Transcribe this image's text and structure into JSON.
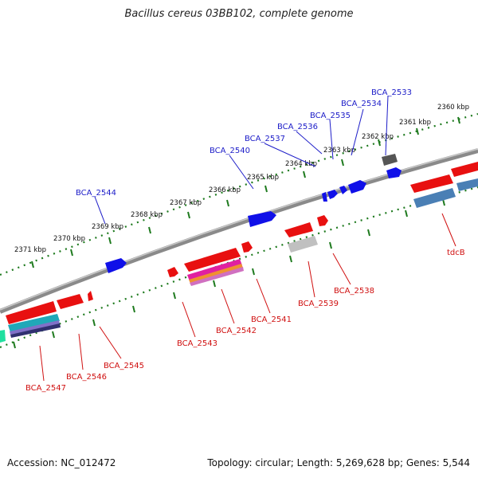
{
  "title": "Bacillus cereus 03BB102, complete genome",
  "footer": {
    "accession": "Accession: NC_012472",
    "topology": "Topology: circular; Length: 5,269,628 bp; Genes: 5,544"
  },
  "ticks": [
    "2360 kbp",
    "2361 kbp",
    "2362 kbp",
    "2363 kbp",
    "2364 kbp",
    "2365 kbp",
    "2366 kbp",
    "2367 kbp",
    "2368 kbp",
    "2369 kbp",
    "2370 kbp",
    "2371 kbp"
  ],
  "forward_gene_labels": [
    "BCA_2533",
    "BCA_2534",
    "BCA_2535",
    "BCA_2536",
    "BCA_2537",
    "BCA_2540",
    "BCA_2544"
  ],
  "reverse_gene_labels": [
    "tdcB",
    "BCA_2538",
    "BCA_2539",
    "BCA_2541",
    "BCA_2542",
    "BCA_2543",
    "BCA_2545",
    "BCA_2546",
    "BCA_2547"
  ],
  "colors": {
    "forward_gene": "#1010e8",
    "reverse_gene": "#e81010",
    "backbone": "#8c8c8c",
    "tick_track": "#1e7a1e"
  }
}
